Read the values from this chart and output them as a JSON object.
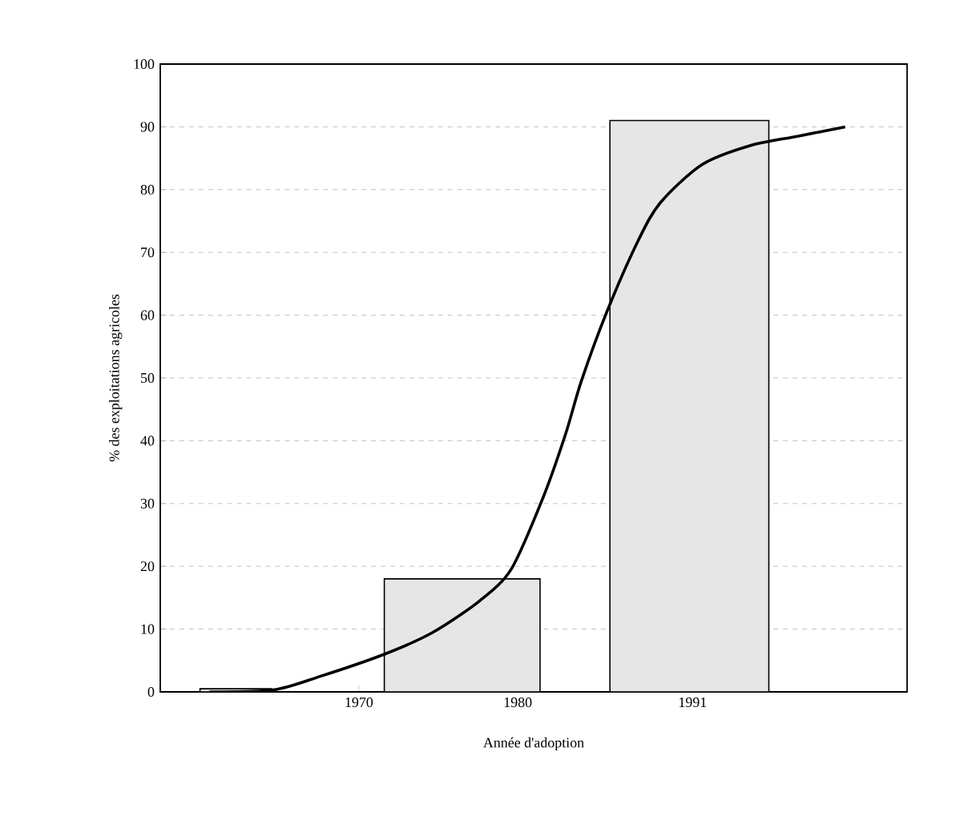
{
  "chart_data": {
    "type": "histogram",
    "xlabel": "Année d'adoption",
    "ylabel": "% des exploitations agricoles",
    "xlim": [
      1957.5,
      2004.5
    ],
    "xticks": [
      1970,
      1980,
      1991
    ],
    "ylim": [
      0,
      100
    ],
    "yticks": [
      0,
      10,
      20,
      30,
      40,
      50,
      60,
      70,
      80,
      90,
      100
    ],
    "grid": "y",
    "series": [
      {
        "color": "#e6e6e6",
        "bins": [
          1960,
          1964.5,
          1971.6,
          1981.4,
          1985.8,
          1995.8
        ],
        "values": [
          0.5,
          null,
          18,
          null,
          91
        ]
      },
      {
        "type": "line",
        "color": "#000000",
        "x": [
          1960.6,
          1964.6,
          1967.6,
          1971.6,
          1974.6,
          1977.6,
          1979.6,
          1981.6,
          1983,
          1984,
          1985.6,
          1987.6,
          1989,
          1991.6,
          1994.6,
          1997.6,
          2000.6
        ],
        "values": [
          0,
          0.3,
          2.5,
          6,
          9.4,
          14.5,
          19.6,
          31,
          41,
          49.5,
          60.5,
          72,
          78,
          84,
          87,
          88.5,
          90
        ]
      }
    ]
  }
}
